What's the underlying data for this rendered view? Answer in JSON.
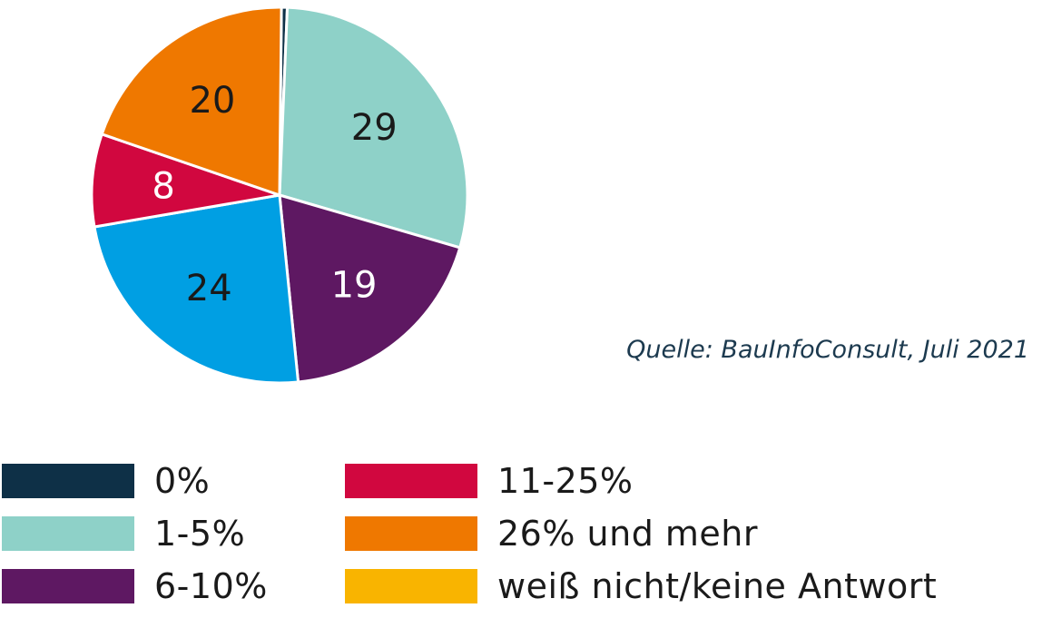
{
  "chart_data": {
    "type": "pie",
    "categories": [
      "0%",
      "1-5%",
      "6-10%",
      "11-25%",
      "26% und mehr",
      "weiß nicht/keine Antwort"
    ],
    "values": [
      0.5,
      29,
      19,
      24,
      8,
      20
    ],
    "data_labels": [
      "",
      "29",
      "19",
      "24",
      "8",
      "20"
    ],
    "slice_order": [
      0,
      1,
      2,
      4,
      3,
      5
    ],
    "label_colors": [
      "#ffffff",
      "#1a1a1a",
      "#ffffff",
      "#1a1a1a",
      "#ffffff",
      "#1a1a1a"
    ],
    "colors": [
      "#0e3047",
      "#8ed1c8",
      "#5e1862",
      "#d1073f",
      "#ef7800",
      "#f9b400"
    ],
    "pie_colors": [
      "#0e3047",
      "#8ed1c8",
      "#5e1862",
      "#009fe3",
      "#d1073f",
      "#ef7800"
    ],
    "legend_position": "bottom"
  },
  "source": "Quelle: BauInfoConsult, Juli 2021",
  "legend": [
    {
      "label": "0%",
      "color": "#0e3047"
    },
    {
      "label": "1-5%",
      "color": "#8ed1c8"
    },
    {
      "label": "6-10%",
      "color": "#5e1862"
    },
    {
      "label": "11-25%",
      "color": "#d1073f"
    },
    {
      "label": "26% und mehr",
      "color": "#ef7800"
    },
    {
      "label": "weiß nicht/keine Antwort",
      "color": "#f9b400"
    }
  ]
}
